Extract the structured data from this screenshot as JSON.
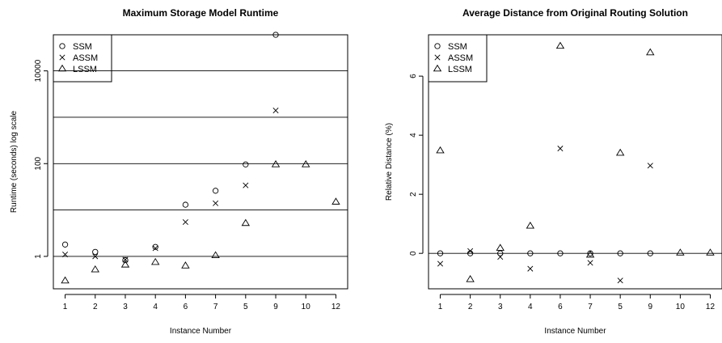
{
  "chart_data": [
    {
      "type": "scatter",
      "title": "Maximum Storage Model Runtime",
      "xlabel": "Instance Number",
      "ylabel": "Runtime (seconds) log scale",
      "yscale": "log",
      "ylim": [
        0.2,
        60000
      ],
      "y_ticks": [
        1,
        100,
        10000
      ],
      "y_tick_labels": [
        "1",
        "100",
        "10000"
      ],
      "hlines": [
        1,
        10,
        100,
        1000,
        10000
      ],
      "legend_position": "top-left",
      "categories": [
        "1",
        "2",
        "3",
        "4",
        "6",
        "7",
        "5",
        "9",
        "10",
        "12"
      ],
      "series": [
        {
          "name": "SSM",
          "marker": "circle",
          "values": [
            1.8,
            1.25,
            0.83,
            1.6,
            13,
            26,
            96,
            60000,
            null,
            null
          ]
        },
        {
          "name": "ASSM",
          "marker": "cross",
          "values": [
            1.1,
            1.0,
            0.85,
            1.5,
            5.5,
            14,
            34,
            1400,
            null,
            null
          ]
        },
        {
          "name": "LSSM",
          "marker": "triangle",
          "values": [
            0.3,
            0.52,
            0.66,
            0.75,
            0.63,
            1.05,
            5.2,
            96,
            96,
            15
          ]
        }
      ]
    },
    {
      "type": "scatter",
      "title": "Average Distance from Original Routing Solution",
      "xlabel": "Instance Number",
      "ylabel": "Relative Distance (%)",
      "ylim": [
        -1.2,
        7.4
      ],
      "y_ticks": [
        0,
        2,
        4,
        6
      ],
      "y_tick_labels": [
        "0",
        "2",
        "4",
        "6"
      ],
      "hlines": [
        0
      ],
      "legend_position": "top-left",
      "categories": [
        "1",
        "2",
        "3",
        "4",
        "6",
        "7",
        "5",
        "9",
        "10",
        "12"
      ],
      "series": [
        {
          "name": "SSM",
          "marker": "circle",
          "values": [
            0,
            0,
            0,
            0,
            0,
            0,
            0,
            0,
            null,
            null
          ]
        },
        {
          "name": "ASSM",
          "marker": "cross",
          "values": [
            -0.35,
            0.08,
            -0.12,
            -0.52,
            3.55,
            -0.32,
            -0.92,
            2.97,
            null,
            null
          ]
        },
        {
          "name": "LSSM",
          "marker": "triangle",
          "values": [
            3.48,
            -0.88,
            0.18,
            0.93,
            7.02,
            -0.05,
            3.4,
            6.8,
            0.02,
            0.02
          ]
        }
      ]
    }
  ]
}
